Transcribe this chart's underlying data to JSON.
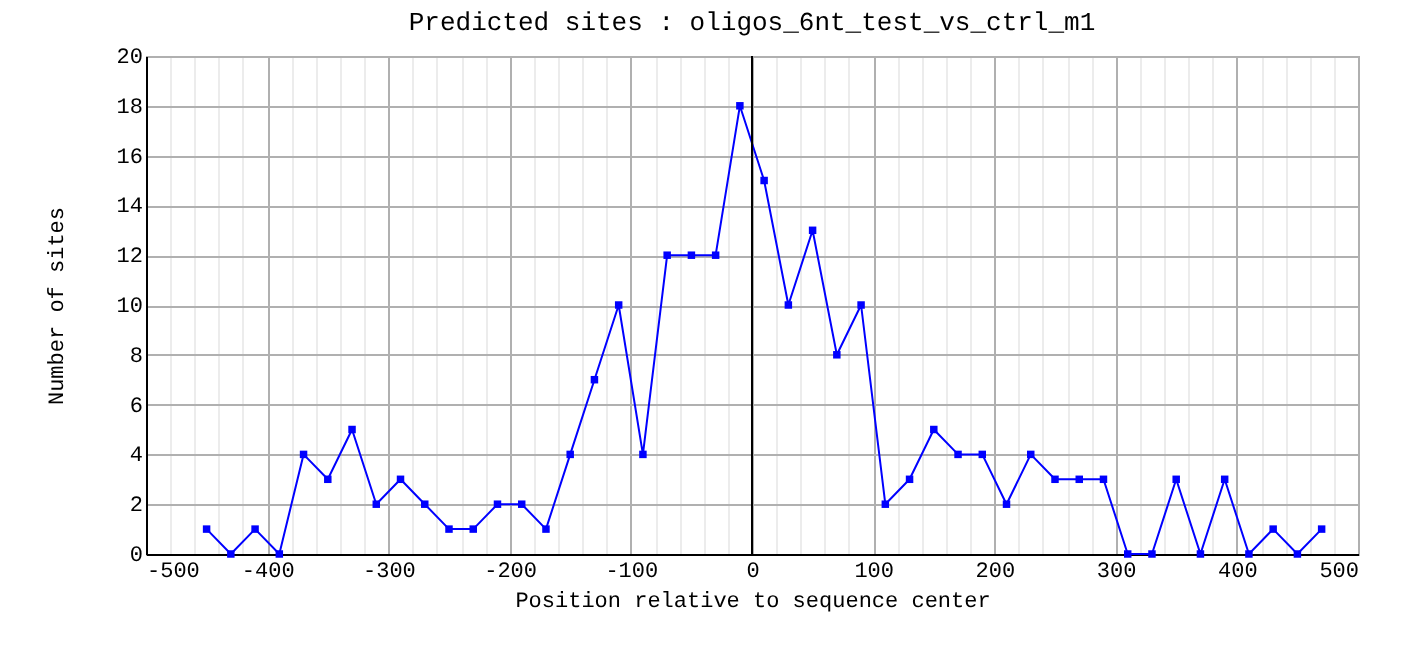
{
  "chart_data": {
    "type": "line",
    "title": "Predicted sites : oligos_6nt_test_vs_ctrl_m1",
    "xlabel": "Position relative to sequence center",
    "ylabel": "Number of sites",
    "x": [
      -450,
      -430,
      -410,
      -390,
      -370,
      -350,
      -330,
      -310,
      -290,
      -270,
      -250,
      -230,
      -210,
      -190,
      -170,
      -150,
      -130,
      -110,
      -90,
      -70,
      -50,
      -30,
      -10,
      10,
      30,
      50,
      70,
      90,
      110,
      130,
      150,
      170,
      190,
      210,
      230,
      250,
      270,
      290,
      310,
      330,
      350,
      370,
      390,
      410,
      430,
      450,
      470
    ],
    "series": [
      {
        "color": "#0000ff",
        "values": [
          1,
          0,
          1,
          0,
          4,
          3,
          5,
          2,
          3,
          2,
          1,
          1,
          2,
          2,
          1,
          4,
          7,
          10,
          4,
          12,
          12,
          12,
          18,
          15,
          10,
          13,
          8,
          10,
          2,
          3,
          5,
          4,
          4,
          2,
          4,
          3,
          3,
          3,
          0,
          0,
          3,
          0,
          3,
          0,
          1,
          0,
          1
        ]
      }
    ],
    "xlim": [
      -500,
      500
    ],
    "xticks": [
      -500,
      {
        "value": -480,
        "label": null
      },
      {
        "value": -460,
        "label": null
      },
      {
        "value": -440,
        "label": null
      },
      {
        "value": -420,
        "label": null
      },
      -400,
      {
        "value": -380,
        "label": null
      },
      {
        "value": -360,
        "label": null
      },
      {
        "value": -340,
        "label": null
      },
      {
        "value": -320,
        "label": null
      },
      -300,
      {
        "value": -280,
        "label": null
      },
      {
        "value": -260,
        "label": null
      },
      {
        "value": -240,
        "label": null
      },
      {
        "value": -220,
        "label": null
      },
      -200,
      {
        "value": -180,
        "label": null
      },
      {
        "value": -160,
        "label": null
      },
      {
        "value": -140,
        "label": null
      },
      {
        "value": -120,
        "label": null
      },
      -100,
      {
        "value": -80,
        "label": null
      },
      {
        "value": -60,
        "label": null
      },
      {
        "value": -40,
        "label": null
      },
      {
        "value": -20,
        "label": null
      },
      0,
      {
        "value": 20,
        "label": null
      },
      {
        "value": 40,
        "label": null
      },
      {
        "value": 60,
        "label": null
      },
      {
        "value": 80,
        "label": null
      },
      100,
      {
        "value": 120,
        "label": null
      },
      {
        "value": 140,
        "label": null
      },
      {
        "value": 160,
        "label": null
      },
      {
        "value": 180,
        "label": null
      },
      200,
      {
        "value": 220,
        "label": null
      },
      {
        "value": 240,
        "label": null
      },
      {
        "value": 260,
        "label": null
      },
      {
        "value": 280,
        "label": null
      },
      300,
      {
        "value": 320,
        "label": null
      },
      {
        "value": 340,
        "label": null
      },
      {
        "value": 360,
        "label": null
      },
      {
        "value": 380,
        "label": null
      },
      400,
      {
        "value": 420,
        "label": null
      },
      {
        "value": 440,
        "label": null
      },
      {
        "value": 460,
        "label": null
      },
      {
        "value": 480,
        "label": null
      },
      500
    ],
    "ylim": [
      0,
      20
    ],
    "yticks": [
      0,
      2,
      4,
      6,
      8,
      10,
      12,
      14,
      16,
      18,
      20
    ],
    "ref_lines": [
      {
        "axis": "x",
        "value": 0,
        "color": "#000000"
      }
    ],
    "grid": true,
    "marker": "square",
    "line_style": "solid"
  }
}
